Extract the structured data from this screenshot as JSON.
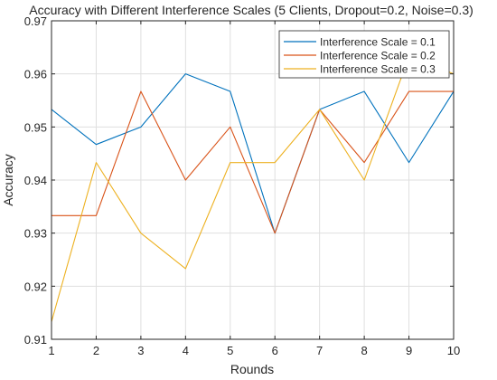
{
  "chart_data": {
    "type": "line",
    "title": "Accuracy with Different Interference Scales (5 Clients, Dropout=0.2, Noise=0.3)",
    "xlabel": "Rounds",
    "ylabel": "Accuracy",
    "xlim": [
      1,
      10
    ],
    "ylim": [
      0.91,
      0.97
    ],
    "xticks": [
      1,
      2,
      3,
      4,
      5,
      6,
      7,
      8,
      9,
      10
    ],
    "yticks": [
      0.91,
      0.92,
      0.93,
      0.94,
      0.95,
      0.96,
      0.97
    ],
    "grid": true,
    "legend_position": "top-right",
    "x": [
      1,
      2,
      3,
      4,
      5,
      6,
      7,
      8,
      9,
      10
    ],
    "series": [
      {
        "name": "Interference Scale = 0.1",
        "color": "#0072BD",
        "values": [
          0.9533,
          0.9467,
          0.95,
          0.96,
          0.9567,
          0.93,
          0.9533,
          0.9567,
          0.9433,
          0.9567
        ]
      },
      {
        "name": "Interference Scale = 0.2",
        "color": "#D95319",
        "values": [
          0.9333,
          0.9333,
          0.9567,
          0.94,
          0.95,
          0.93,
          0.9533,
          0.9433,
          0.9567,
          0.9567
        ]
      },
      {
        "name": "Interference Scale = 0.3",
        "color": "#EDB120",
        "values": [
          0.9133,
          0.9433,
          0.93,
          0.9233,
          0.9433,
          0.9433,
          0.9533,
          0.94,
          0.9633,
          0.96
        ]
      }
    ]
  }
}
